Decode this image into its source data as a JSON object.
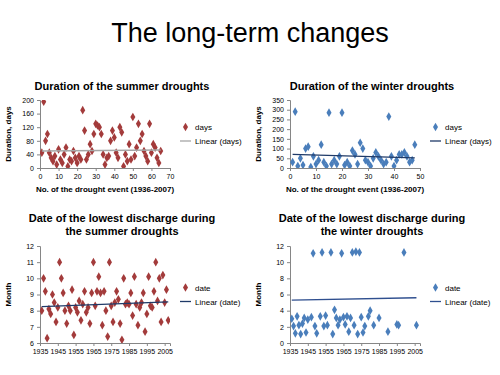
{
  "title": "The long-term changes",
  "chart_data": [
    {
      "type": "scatter",
      "title": "Duration of the summer droughts",
      "x_label": "No. of the drought event (1936-2007)",
      "y_label": "Duration, days",
      "xlim": [
        0,
        70
      ],
      "xticks": [
        0,
        10,
        20,
        30,
        40,
        50,
        60,
        70
      ],
      "ylim": [
        0,
        200
      ],
      "yticks": [
        0,
        40,
        80,
        120,
        160,
        200
      ],
      "legend": "right",
      "series": [
        {
          "name": "days",
          "color": "#a33b3b",
          "marker": "diamond",
          "x": [
            1,
            2,
            3,
            4,
            5,
            6,
            7,
            8,
            9,
            10,
            11,
            12,
            13,
            14,
            15,
            16,
            17,
            18,
            19,
            20,
            21,
            22,
            23,
            24,
            25,
            26,
            27,
            28,
            29,
            30,
            31,
            32,
            33,
            34,
            35,
            36,
            37,
            38,
            39,
            40,
            41,
            42,
            43,
            44,
            45,
            46,
            47,
            48,
            49,
            50,
            51,
            52,
            53,
            54,
            55,
            56,
            57,
            58,
            59,
            60,
            61,
            62,
            63,
            64,
            65
          ],
          "values": [
            45,
            195,
            80,
            100,
            45,
            30,
            20,
            35,
            10,
            55,
            25,
            15,
            40,
            60,
            5,
            25,
            20,
            50,
            30,
            15,
            35,
            25,
            170,
            110,
            25,
            40,
            70,
            50,
            100,
            130,
            125,
            120,
            100,
            40,
            10,
            30,
            35,
            80,
            110,
            90,
            45,
            30,
            120,
            105,
            5,
            40,
            20,
            70,
            25,
            150,
            35,
            60,
            130,
            80,
            100,
            50,
            35,
            20,
            130,
            45,
            70,
            60,
            30,
            15,
            50
          ]
        },
        {
          "name": "Linear (days)",
          "type": "line",
          "color": "#a6a6a6",
          "line_style": "solid",
          "x": [
            1,
            65
          ],
          "values": [
            50,
            53
          ]
        }
      ]
    },
    {
      "type": "scatter",
      "title": "Duration of the winter droughts",
      "x_label": "No. of the drought event (1936-2007)",
      "y_label": "Duration, days",
      "xlim": [
        0,
        50
      ],
      "xticks": [
        0,
        10,
        20,
        30,
        40,
        50
      ],
      "ylim": [
        0,
        350
      ],
      "yticks": [
        0,
        50,
        100,
        150,
        200,
        250,
        300,
        350
      ],
      "legend": "right",
      "series": [
        {
          "name": "days",
          "color": "#4a7ebb",
          "marker": "diamond",
          "x": [
            1,
            2,
            3,
            4,
            5,
            6,
            7,
            8,
            9,
            10,
            11,
            12,
            13,
            14,
            15,
            16,
            17,
            18,
            19,
            20,
            21,
            22,
            23,
            24,
            25,
            26,
            27,
            28,
            29,
            30,
            31,
            32,
            33,
            34,
            35,
            36,
            37,
            38,
            39,
            40,
            41,
            42,
            43,
            44,
            45,
            46,
            47,
            48
          ],
          "values": [
            30,
            290,
            10,
            50,
            15,
            100,
            110,
            5,
            60,
            20,
            40,
            120,
            30,
            10,
            285,
            20,
            40,
            20,
            60,
            285,
            15,
            30,
            10,
            90,
            70,
            20,
            130,
            100,
            40,
            30,
            10,
            50,
            80,
            60,
            40,
            20,
            30,
            265,
            60,
            10,
            40,
            70,
            70,
            80,
            60,
            30,
            40,
            120
          ]
        },
        {
          "name": "Linear (days)",
          "type": "line",
          "color": "#1f3a68",
          "line_style": "solid",
          "x": [
            1,
            48
          ],
          "values": [
            70,
            52
          ]
        }
      ]
    },
    {
      "type": "scatter",
      "title": "Date of the lowest discharge during the summer droughts",
      "y_label": "Month",
      "xlim": [
        1935,
        2008
      ],
      "xticks": [
        1935,
        1945,
        1955,
        1965,
        1975,
        1985,
        1995,
        2005
      ],
      "ylim": [
        6,
        12
      ],
      "yticks": [
        6,
        7,
        8,
        9,
        10,
        11,
        12
      ],
      "legend": "right",
      "series": [
        {
          "name": "date",
          "color": "#a33b3b",
          "marker": "diamond",
          "x": [
            1936,
            1937,
            1938,
            1939,
            1940,
            1941,
            1942,
            1943,
            1944,
            1945,
            1946,
            1947,
            1948,
            1949,
            1950,
            1951,
            1952,
            1953,
            1954,
            1955,
            1956,
            1957,
            1958,
            1959,
            1960,
            1961,
            1962,
            1963,
            1964,
            1965,
            1966,
            1967,
            1968,
            1969,
            1970,
            1971,
            1972,
            1973,
            1974,
            1975,
            1976,
            1977,
            1978,
            1979,
            1980,
            1981,
            1982,
            1983,
            1984,
            1985,
            1986,
            1987,
            1988,
            1989,
            1990,
            1991,
            1992,
            1993,
            1994,
            1995,
            1996,
            1997,
            1998,
            1999,
            2000,
            2001,
            2002,
            2003,
            2004,
            2005,
            2006,
            2007
          ],
          "values": [
            8,
            10,
            9.2,
            6.3,
            8.1,
            7.8,
            9,
            8.5,
            7.3,
            8.2,
            11,
            10,
            9.1,
            8,
            7.2,
            8.3,
            8,
            9.3,
            6.5,
            8.2,
            7.9,
            8.6,
            7.4,
            8.4,
            9.2,
            7.9,
            8.2,
            7.2,
            9.1,
            11,
            8.3,
            9.2,
            10.1,
            9.1,
            7.1,
            9.2,
            8,
            6.4,
            11,
            8.3,
            7.3,
            8.5,
            9.2,
            8.7,
            7.2,
            6.2,
            10,
            8.4,
            8.5,
            8.4,
            9.1,
            7.7,
            10.1,
            8.4,
            7.1,
            8.2,
            8.5,
            9.1,
            6.7,
            7.8,
            10.1,
            8.3,
            8.2,
            9.2,
            11,
            8.6,
            10,
            7.3,
            10.2,
            8.5,
            9.3,
            7.4
          ]
        },
        {
          "name": "Linear (date)",
          "type": "line",
          "color": "#1f3a68",
          "line_style": "solid",
          "x": [
            1936,
            2007
          ],
          "values": [
            8.25,
            8.55
          ]
        }
      ]
    },
    {
      "type": "scatter",
      "title": "Date of the lowest discharge during the winter droughts",
      "y_label": "Month",
      "xlim": [
        1935,
        2008
      ],
      "xticks": [
        1935,
        1945,
        1955,
        1965,
        1975,
        1985,
        1995,
        2005
      ],
      "ylim": [
        0,
        12
      ],
      "yticks": [
        0,
        2,
        4,
        6,
        8,
        10,
        12
      ],
      "legend": "right",
      "series": [
        {
          "name": "date",
          "color": "#4a7ebb",
          "marker": "diamond",
          "x": [
            1936,
            1937,
            1938,
            1939,
            1940,
            1941,
            1942,
            1943,
            1944,
            1945,
            1947,
            1948,
            1949,
            1950,
            1952,
            1953,
            1954,
            1955,
            1956,
            1958,
            1959,
            1960,
            1961,
            1962,
            1963,
            1964,
            1965,
            1966,
            1967,
            1968,
            1969,
            1970,
            1971,
            1972,
            1973,
            1974,
            1975,
            1976,
            1977,
            1979,
            1980,
            1982,
            1985,
            1990,
            1995,
            1996,
            1999,
            2006
          ],
          "values": [
            3,
            2.1,
            1.2,
            3.3,
            2.2,
            1.1,
            2.4,
            3.1,
            1.3,
            2.9,
            3.2,
            11.1,
            2.1,
            1.2,
            3.3,
            11.2,
            2.1,
            3.4,
            2.2,
            11.2,
            1.1,
            4.1,
            3.1,
            2.2,
            2.9,
            11.1,
            3.2,
            2.3,
            3.3,
            1.4,
            3.1,
            11.2,
            2.2,
            11.3,
            1.1,
            11.2,
            3.2,
            1.3,
            2.1,
            3.3,
            4,
            2.2,
            3.1,
            1.4,
            2.3,
            2.2,
            11.2,
            2.2
          ]
        },
        {
          "name": "Linear (date)",
          "type": "line",
          "color": "#2f4f8f",
          "line_style": "solid",
          "x": [
            1936,
            2006
          ],
          "values": [
            5.3,
            5.6
          ]
        }
      ]
    }
  ]
}
